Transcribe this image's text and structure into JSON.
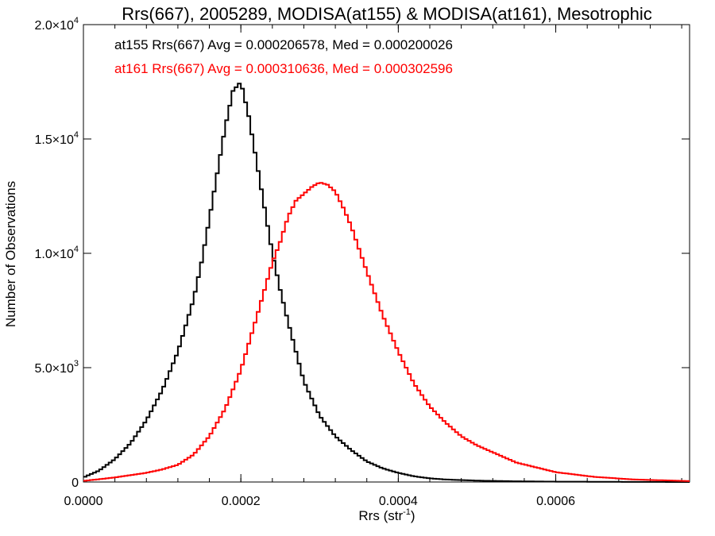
{
  "chart_data": {
    "type": "line",
    "title": "Rrs(667), 2005289, MODISA(at155) & MODISA(at161), Mesotrophic",
    "xlabel": "Rrs (str",
    "xlabel_sup": "-1",
    "xlabel_close": ")",
    "ylabel": "Number of Observations",
    "xlim": [
      0,
      0.00077
    ],
    "ylim": [
      0,
      20000
    ],
    "x_ticks": [
      {
        "value": 0,
        "label": "0.0000"
      },
      {
        "value": 0.0002,
        "label": "0.0002"
      },
      {
        "value": 0.0004,
        "label": "0.0004"
      },
      {
        "value": 0.0006,
        "label": "0.0006"
      }
    ],
    "y_ticks": [
      {
        "value": 0,
        "mantissa": "0",
        "exp": ""
      },
      {
        "value": 5000,
        "mantissa": "5.0×10",
        "exp": "3"
      },
      {
        "value": 10000,
        "mantissa": "1.0×10",
        "exp": "4"
      },
      {
        "value": 15000,
        "mantissa": "1.5×10",
        "exp": "4"
      },
      {
        "value": 20000,
        "mantissa": "2.0×10",
        "exp": "4"
      }
    ],
    "legend_position": "top-left",
    "annotations": [
      {
        "text": "at155 Rrs(667) Avg = 0.000206578, Med = 0.000200026",
        "color": "#000000"
      },
      {
        "text": "at161 Rrs(667) Avg = 0.000310636, Med = 0.000302596",
        "color": "#ff0000"
      }
    ],
    "series": [
      {
        "color": "#000000",
        "x": [
          0,
          2e-05,
          4e-05,
          6e-05,
          8e-05,
          0.0001,
          0.00012,
          0.00014,
          0.00015,
          0.00016,
          0.00017,
          0.00018,
          0.00019,
          0.0002,
          0.00021,
          0.00022,
          0.00023,
          0.00024,
          0.00025,
          0.00026,
          0.00027,
          0.00028,
          0.0003,
          0.00032,
          0.00034,
          0.00036,
          0.00038,
          0.0004,
          0.00042,
          0.00044,
          0.00046,
          0.0005,
          0.00055,
          0.0006,
          0.00065,
          0.0007,
          0.00077
        ],
        "y": [
          200,
          500,
          1000,
          1700,
          2700,
          4000,
          5700,
          8000,
          9600,
          11500,
          13500,
          15500,
          17100,
          17500,
          16000,
          14000,
          12000,
          10000,
          8400,
          7000,
          5700,
          4400,
          2900,
          2000,
          1400,
          900,
          600,
          400,
          250,
          160,
          110,
          60,
          30,
          15,
          10,
          5,
          0
        ]
      },
      {
        "color": "#ff0000",
        "x": [
          0,
          2e-05,
          4e-05,
          6e-05,
          8e-05,
          0.0001,
          0.00012,
          0.00014,
          0.00016,
          0.00018,
          0.0002,
          0.00022,
          0.00024,
          0.00025,
          0.00026,
          0.00027,
          0.00028,
          0.00029,
          0.0003,
          0.00031,
          0.00032,
          0.00033,
          0.00034,
          0.00036,
          0.00038,
          0.0004,
          0.00042,
          0.00044,
          0.00046,
          0.00048,
          0.0005,
          0.00055,
          0.0006,
          0.00065,
          0.0007,
          0.00077
        ],
        "y": [
          50,
          120,
          200,
          300,
          400,
          550,
          750,
          1200,
          2000,
          3200,
          4900,
          7200,
          9600,
          10500,
          11600,
          12300,
          12600,
          12900,
          13100,
          13000,
          12700,
          12000,
          11200,
          9200,
          7300,
          5700,
          4300,
          3300,
          2600,
          2000,
          1600,
          850,
          430,
          220,
          110,
          40
        ]
      }
    ]
  }
}
